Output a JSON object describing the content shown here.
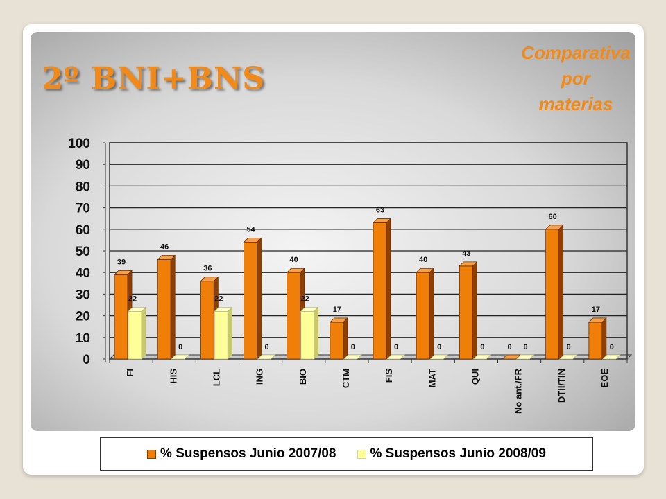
{
  "slide_title": "2º BNI+BNS",
  "subtitle_lines": [
    "Comparativa",
    "por",
    "materias"
  ],
  "colors": {
    "accent": "#f28a1a",
    "series_2007": "#f07f09",
    "series_2008": "#ffff99"
  },
  "chart_data": {
    "type": "bar",
    "categories": [
      "FI",
      "HIS",
      "LCL",
      "ING",
      "BIO",
      "CTM",
      "FIS",
      "MAT",
      "QUI",
      "No ant./FR",
      "DTII/TIN",
      "EOE"
    ],
    "series": [
      {
        "name": "% Suspensos Junio 2007/08",
        "values": [
          39,
          46,
          36,
          54,
          40,
          17,
          63,
          40,
          43,
          0,
          60,
          17
        ]
      },
      {
        "name": "% Suspensos Junio 2008/09",
        "values": [
          22,
          0,
          22,
          0,
          22,
          0,
          0,
          0,
          0,
          0,
          0,
          0
        ]
      }
    ],
    "ylim": [
      0,
      100
    ],
    "yticks": [
      "0",
      "10",
      "20",
      "30",
      "40",
      "50",
      "60",
      "70",
      "80",
      "90",
      "100"
    ],
    "grid": true,
    "legend_position": "bottom",
    "xlabel": "",
    "ylabel": ""
  }
}
